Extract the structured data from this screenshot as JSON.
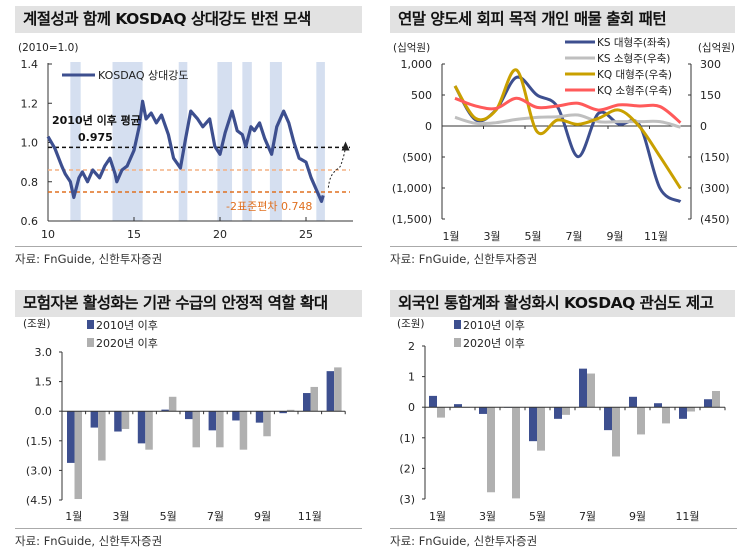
{
  "panels": [
    {
      "title": "계절성과 함께 KOSDAQ 상대강도 반전 모색",
      "source": "자료: FnGuide, 신한투자증권"
    },
    {
      "title": "연말 양도세 회피 목적 개인 매물 출회 패턴",
      "source": "자료: FnGuide, 신한투자증권"
    },
    {
      "title": "모험자본 활성화는 기관 수급의 안정적 역할 확대",
      "source": "자료: FnGuide, 신한투자증권"
    },
    {
      "title": "외국인 통합계좌 활성화시 KOSDAQ 관심도 제고",
      "source": "자료: FnGuide, 신한투자증권"
    }
  ],
  "chart_data": [
    {
      "type": "line",
      "unit_label": "(2010=1.0)",
      "ylim": [
        0.6,
        1.4
      ],
      "yticks": [
        "0.6",
        "0.8",
        "1.0",
        "1.2",
        "1.4"
      ],
      "xticks": [
        "10",
        "15",
        "20",
        "25"
      ],
      "xticks_values": [
        10,
        15,
        20,
        25
      ],
      "series": [
        {
          "name": "KOSDAQ 상대강도",
          "color": "#3d4f8f",
          "x": [
            10.0,
            10.4,
            10.8,
            11.0,
            11.3,
            11.5,
            11.8,
            12.0,
            12.3,
            12.6,
            13.0,
            13.3,
            13.6,
            13.9,
            14.0,
            14.3,
            14.6,
            15.0,
            15.3,
            15.5,
            15.7,
            16.0,
            16.3,
            16.6,
            17.0,
            17.3,
            17.7,
            18.0,
            18.3,
            18.7,
            19.0,
            19.4,
            19.7,
            20.0,
            20.3,
            20.7,
            21.0,
            21.3,
            21.5,
            21.8,
            22.0,
            22.3,
            22.6,
            23.0,
            23.3,
            23.7,
            24.0,
            24.3,
            24.6,
            25.0,
            25.3,
            25.6,
            25.9,
            26.0
          ],
          "y": [
            1.03,
            0.97,
            0.88,
            0.84,
            0.8,
            0.72,
            0.82,
            0.85,
            0.8,
            0.86,
            0.82,
            0.88,
            0.92,
            0.84,
            0.8,
            0.86,
            0.88,
            0.96,
            1.08,
            1.21,
            1.12,
            1.15,
            1.1,
            1.14,
            1.04,
            0.92,
            0.87,
            1.02,
            1.16,
            1.12,
            1.08,
            1.12,
            0.98,
            0.94,
            1.05,
            1.16,
            1.06,
            1.04,
            0.98,
            1.08,
            1.06,
            1.1,
            1.02,
            0.94,
            1.08,
            1.16,
            1.1,
            1.0,
            0.92,
            0.9,
            0.82,
            0.76,
            0.7,
            0.73
          ]
        }
      ],
      "shaded_periods": [
        [
          11.3,
          11.9
        ],
        [
          13.75,
          15.5
        ],
        [
          17.6,
          18.1
        ],
        [
          19.85,
          20.7
        ],
        [
          21.3,
          21.85
        ],
        [
          22.9,
          23.6
        ],
        [
          25.6,
          26.1
        ]
      ],
      "reference_lines": [
        {
          "label": "2010년 이후 평균",
          "value_label": "0.975",
          "value": 0.975,
          "color": "#111111"
        },
        {
          "value": 0.86,
          "color": "#f4b183"
        },
        {
          "label": "-2표준편차",
          "value_label": "0.748",
          "value": 0.748,
          "color": "#e07020"
        }
      ]
    },
    {
      "type": "line",
      "unit_left": "(십억원)",
      "unit_right": "(십억원)",
      "ylim_left": [
        -1500,
        1000
      ],
      "ylim_right": [
        -450,
        300
      ],
      "yticks_left": [
        "(1,500)",
        "(1,000)",
        "(500)",
        "0",
        "500",
        "1,000"
      ],
      "yticks_right": [
        "(450)",
        "(300)",
        "(150)",
        "0",
        "150",
        "300"
      ],
      "categories": [
        "1월",
        "2월",
        "3월",
        "4월",
        "5월",
        "6월",
        "7월",
        "8월",
        "9월",
        "10월",
        "11월",
        "12월"
      ],
      "xtick_labels": [
        "1월",
        "3월",
        "5월",
        "7월",
        "9월",
        "11월"
      ],
      "series": [
        {
          "name": "KS 대형주(좌축)",
          "axis": "left",
          "color": "#3d4f8f",
          "values": [
            645,
            100,
            260,
            785,
            500,
            310,
            -495,
            205,
            30,
            15,
            -1005,
            -1220
          ]
        },
        {
          "name": "KS 소형주(우축)",
          "axis": "right",
          "color": "#bfbfbf",
          "values": [
            42,
            13,
            16,
            32,
            42,
            45,
            53,
            21,
            21,
            21,
            21,
            -6
          ]
        },
        {
          "name": "KQ 대형주(우축)",
          "axis": "right",
          "color": "#c9a000",
          "values": [
            194,
            37,
            77,
            271,
            -27,
            29,
            8,
            37,
            77,
            -3,
            -148,
            -302
          ]
        },
        {
          "name": "KQ 소형주(우축)",
          "axis": "right",
          "color": "#ff5a5a",
          "values": [
            134,
            97,
            85,
            134,
            90,
            97,
            110,
            77,
            102,
            97,
            94,
            16
          ]
        }
      ]
    },
    {
      "type": "bar",
      "unit_label": "(조원)",
      "ylim": [
        -4.5,
        3.0
      ],
      "yticks": [
        "(4.5)",
        "(3.0)",
        "(1.5)",
        "0.0",
        "1.5",
        "3.0"
      ],
      "categories": [
        "1월",
        "2월",
        "3월",
        "4월",
        "5월",
        "6월",
        "7월",
        "8월",
        "9월",
        "10월",
        "11월",
        "12월"
      ],
      "xtick_labels": [
        "1월",
        "3월",
        "5월",
        "7월",
        "9월",
        "11월"
      ],
      "series": [
        {
          "name": "2010년 이후",
          "color": "#3d4f8f",
          "values": [
            -2.62,
            -0.83,
            -1.03,
            -1.63,
            0.08,
            -0.4,
            -0.97,
            -0.47,
            -0.58,
            -0.1,
            0.92,
            2.03
          ]
        },
        {
          "name": "2020년 이후",
          "color": "#b0b0b0",
          "values": [
            -4.45,
            -2.5,
            -0.9,
            -1.95,
            0.73,
            -1.83,
            -1.83,
            -1.95,
            -1.27,
            0.07,
            1.23,
            2.22
          ]
        }
      ]
    },
    {
      "type": "bar",
      "unit_label": "(조원)",
      "ylim": [
        -3,
        2
      ],
      "yticks": [
        "(3)",
        "(2)",
        "(1)",
        "0",
        "1",
        "2"
      ],
      "categories": [
        "1월",
        "2월",
        "3월",
        "4월",
        "5월",
        "6월",
        "7월",
        "8월",
        "9월",
        "10월",
        "11월",
        "12월"
      ],
      "xtick_labels": [
        "1월",
        "3월",
        "5월",
        "7월",
        "9월",
        "11월"
      ],
      "series": [
        {
          "name": "2010년 이후",
          "color": "#3d4f8f",
          "values": [
            0.37,
            0.1,
            -0.22,
            0,
            -1.11,
            -0.38,
            1.26,
            -0.75,
            0.34,
            0.13,
            -0.38,
            0.26
          ]
        },
        {
          "name": "2020년 이후",
          "color": "#b0b0b0",
          "values": [
            -0.34,
            0,
            -2.78,
            -2.98,
            -1.42,
            -0.25,
            1.1,
            -1.61,
            -0.89,
            -0.53,
            -0.14,
            0.53
          ]
        }
      ]
    }
  ]
}
